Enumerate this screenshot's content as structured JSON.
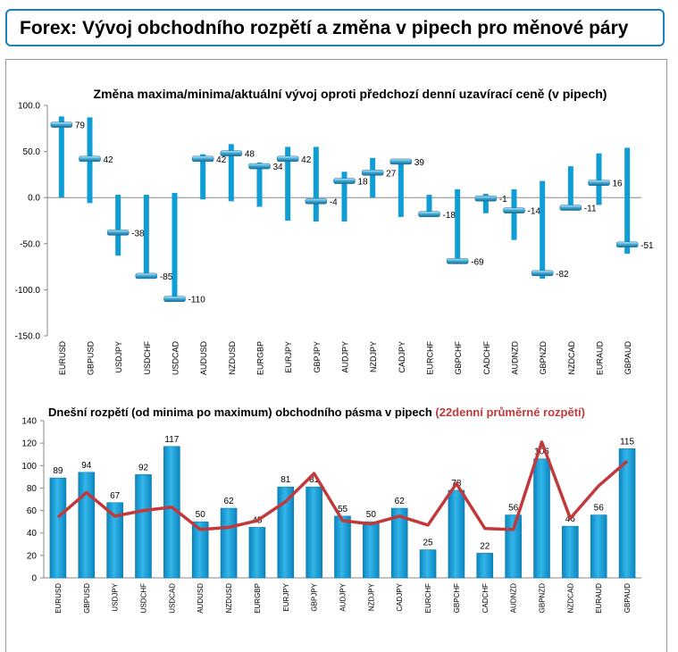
{
  "header": {
    "title": "Forex: Vývoj obchodního rozpětí a změna v pipech pro měnové páry"
  },
  "colors": {
    "bar": "#0f9dd6",
    "bar_light": "#5cc6ee",
    "line": "#c0393b",
    "accent_title": "#c0393b",
    "header_border": "#1c7fc0"
  },
  "chart_data": [
    {
      "type": "range-marker",
      "title": "Změna maxima/minima/aktuální vývoj oproti předchozí denní uzavírací ceně (v pipech)",
      "ylim": [
        -150,
        100
      ],
      "yticks": [
        100,
        50,
        0,
        -50,
        -100,
        -150
      ],
      "ytick_labels": [
        "100.0",
        "50.0",
        "0.0",
        "-50.0",
        "-100.0",
        "-150.0"
      ],
      "categories": [
        "EURUSD",
        "GBPUSD",
        "USDJPY",
        "USDCHF",
        "USDCAD",
        "AUDUSD",
        "NZDUSD",
        "EURGBP",
        "EURJPY",
        "GBPJPY",
        "AUDJPY",
        "NZDJPY",
        "CADJPY",
        "EURCHF",
        "GBPCHF",
        "CADCHF",
        "AUDNZD",
        "GBPNZD",
        "NZDCAD",
        "EURAUD",
        "GBPAUD"
      ],
      "high": [
        88,
        87,
        3,
        3,
        5,
        47,
        58,
        38,
        55,
        55,
        28,
        43,
        41,
        3,
        9,
        4,
        9,
        18,
        34,
        48,
        54
      ],
      "low": [
        0,
        -6,
        -63,
        -85,
        -110,
        -2,
        -4,
        -10,
        -25,
        -26,
        -26,
        0,
        -21,
        -20,
        -72,
        -17,
        -46,
        -88,
        -13,
        -8,
        -61
      ],
      "current": [
        79,
        42,
        -38,
        -85,
        -110,
        42,
        48,
        34,
        42,
        -4,
        18,
        27,
        39,
        -18,
        -69,
        -1,
        -14,
        -82,
        -11,
        16,
        -51
      ],
      "current_labels": [
        "79",
        "42",
        "-38",
        "-85",
        "-110",
        "42",
        "48",
        "34",
        "42",
        "-4",
        "18",
        "27",
        "39",
        "-18",
        "-69",
        "-1",
        "-14",
        "-82",
        "-11",
        "16",
        "-51"
      ]
    },
    {
      "type": "bar+line",
      "title_part1": "Dnešní rozpětí (od minima po maximum) obchodního pásma v pipech",
      "title_part2": "(22denní průměrné rozpětí)",
      "ylim": [
        0,
        140
      ],
      "yticks": [
        0,
        20,
        40,
        60,
        80,
        100,
        120,
        140
      ],
      "categories": [
        "EURUSD",
        "GBPUSD",
        "USDJPY",
        "USDCHF",
        "USDCAD",
        "AUDUSD",
        "NZDUSD",
        "EURGBP",
        "EURJPY",
        "GBPJPY",
        "AUDJPY",
        "NZDJPY",
        "CADJPY",
        "EURCHF",
        "GBPCHF",
        "CADCHF",
        "AUDNZD",
        "GBPNZD",
        "NZDCAD",
        "EURAUD",
        "GBPAUD"
      ],
      "series": [
        {
          "values": [
            89,
            94,
            67,
            92,
            117,
            50,
            62,
            45,
            81,
            81,
            55,
            50,
            62,
            25,
            78,
            22,
            56,
            106,
            46,
            56,
            115
          ],
          "labels": [
            "89",
            "94",
            "67",
            "92",
            "117",
            "50",
            "62",
            "45",
            "81",
            "81",
            "55",
            "50",
            "62",
            "25",
            "78",
            "22",
            "56",
            "106",
            "46",
            "56",
            "115"
          ]
        },
        {
          "values": [
            54,
            76,
            55,
            60,
            63,
            43,
            45,
            51,
            68,
            93,
            51,
            48,
            55,
            47,
            84,
            44,
            43,
            121,
            53,
            82,
            104
          ]
        }
      ]
    }
  ]
}
